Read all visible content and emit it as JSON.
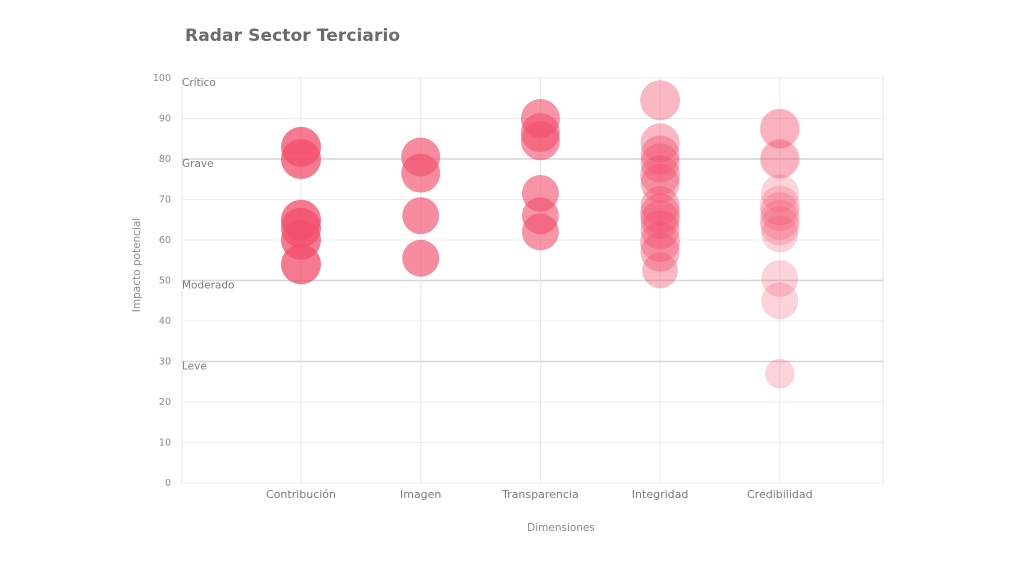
{
  "chart_data": {
    "type": "scatter",
    "subtype": "bubble",
    "title": "Radar Sector Terciario",
    "xlabel": "Dimensiones",
    "ylabel": "Impacto potencial",
    "ylim": [
      0,
      100
    ],
    "yticks": [
      0,
      10,
      20,
      30,
      40,
      50,
      60,
      70,
      80,
      90,
      100
    ],
    "grid": true,
    "categories": [
      "Contribución",
      "Imagen",
      "Transparencia",
      "Integridad",
      "Credibilidad"
    ],
    "bands": [
      {
        "label": "Crítico",
        "value": 100
      },
      {
        "label": "Grave",
        "value": 80
      },
      {
        "label": "Moderado",
        "value": 50
      },
      {
        "label": "Leve",
        "value": 30
      }
    ],
    "color": "#f24e6b",
    "series": [
      {
        "name": "Contribución",
        "opacity": 0.75,
        "points": [
          {
            "y": 83,
            "size": 1.0
          },
          {
            "y": 80,
            "size": 1.0
          },
          {
            "y": 65,
            "size": 1.0
          },
          {
            "y": 63,
            "size": 1.0
          },
          {
            "y": 60,
            "size": 1.0
          },
          {
            "y": 54,
            "size": 1.0
          }
        ]
      },
      {
        "name": "Imagen",
        "opacity": 0.65,
        "points": [
          {
            "y": 80.5,
            "size": 0.95
          },
          {
            "y": 76.5,
            "size": 0.95
          },
          {
            "y": 66,
            "size": 0.85
          },
          {
            "y": 55.5,
            "size": 0.85
          }
        ]
      },
      {
        "name": "Transparencia",
        "opacity": 0.6,
        "points": [
          {
            "y": 90,
            "size": 0.95
          },
          {
            "y": 86.5,
            "size": 0.95
          },
          {
            "y": 84.5,
            "size": 0.95
          },
          {
            "y": 71.5,
            "size": 0.85
          },
          {
            "y": 66,
            "size": 0.85
          },
          {
            "y": 62,
            "size": 0.85
          }
        ]
      },
      {
        "name": "Integridad",
        "opacity": 0.4,
        "points": [
          {
            "y": 94.5,
            "size": 1.0
          },
          {
            "y": 84,
            "size": 0.95
          },
          {
            "y": 81,
            "size": 0.95
          },
          {
            "y": 79,
            "size": 0.95
          },
          {
            "y": 76,
            "size": 1.0
          },
          {
            "y": 74,
            "size": 0.95
          },
          {
            "y": 68.5,
            "size": 0.95
          },
          {
            "y": 66.5,
            "size": 1.0
          },
          {
            "y": 65,
            "size": 0.95
          },
          {
            "y": 62.5,
            "size": 0.95
          },
          {
            "y": 59.5,
            "size": 1.0
          },
          {
            "y": 57,
            "size": 0.95
          },
          {
            "y": 52.5,
            "size": 0.8
          }
        ]
      },
      {
        "name": "Credibilidad",
        "opacity": 0.25,
        "points": [
          {
            "y": 87.5,
            "size": 1.0
          },
          {
            "y": 87.5,
            "size": 0.95
          },
          {
            "y": 80,
            "size": 1.0
          },
          {
            "y": 80,
            "size": 0.9
          },
          {
            "y": 71.5,
            "size": 0.9
          },
          {
            "y": 68.5,
            "size": 1.0
          },
          {
            "y": 67,
            "size": 0.95
          },
          {
            "y": 65,
            "size": 1.0
          },
          {
            "y": 63.5,
            "size": 0.95
          },
          {
            "y": 61.5,
            "size": 0.85
          },
          {
            "y": 50.5,
            "size": 0.85
          },
          {
            "y": 45,
            "size": 0.85
          },
          {
            "y": 27,
            "size": 0.55
          }
        ]
      }
    ]
  }
}
